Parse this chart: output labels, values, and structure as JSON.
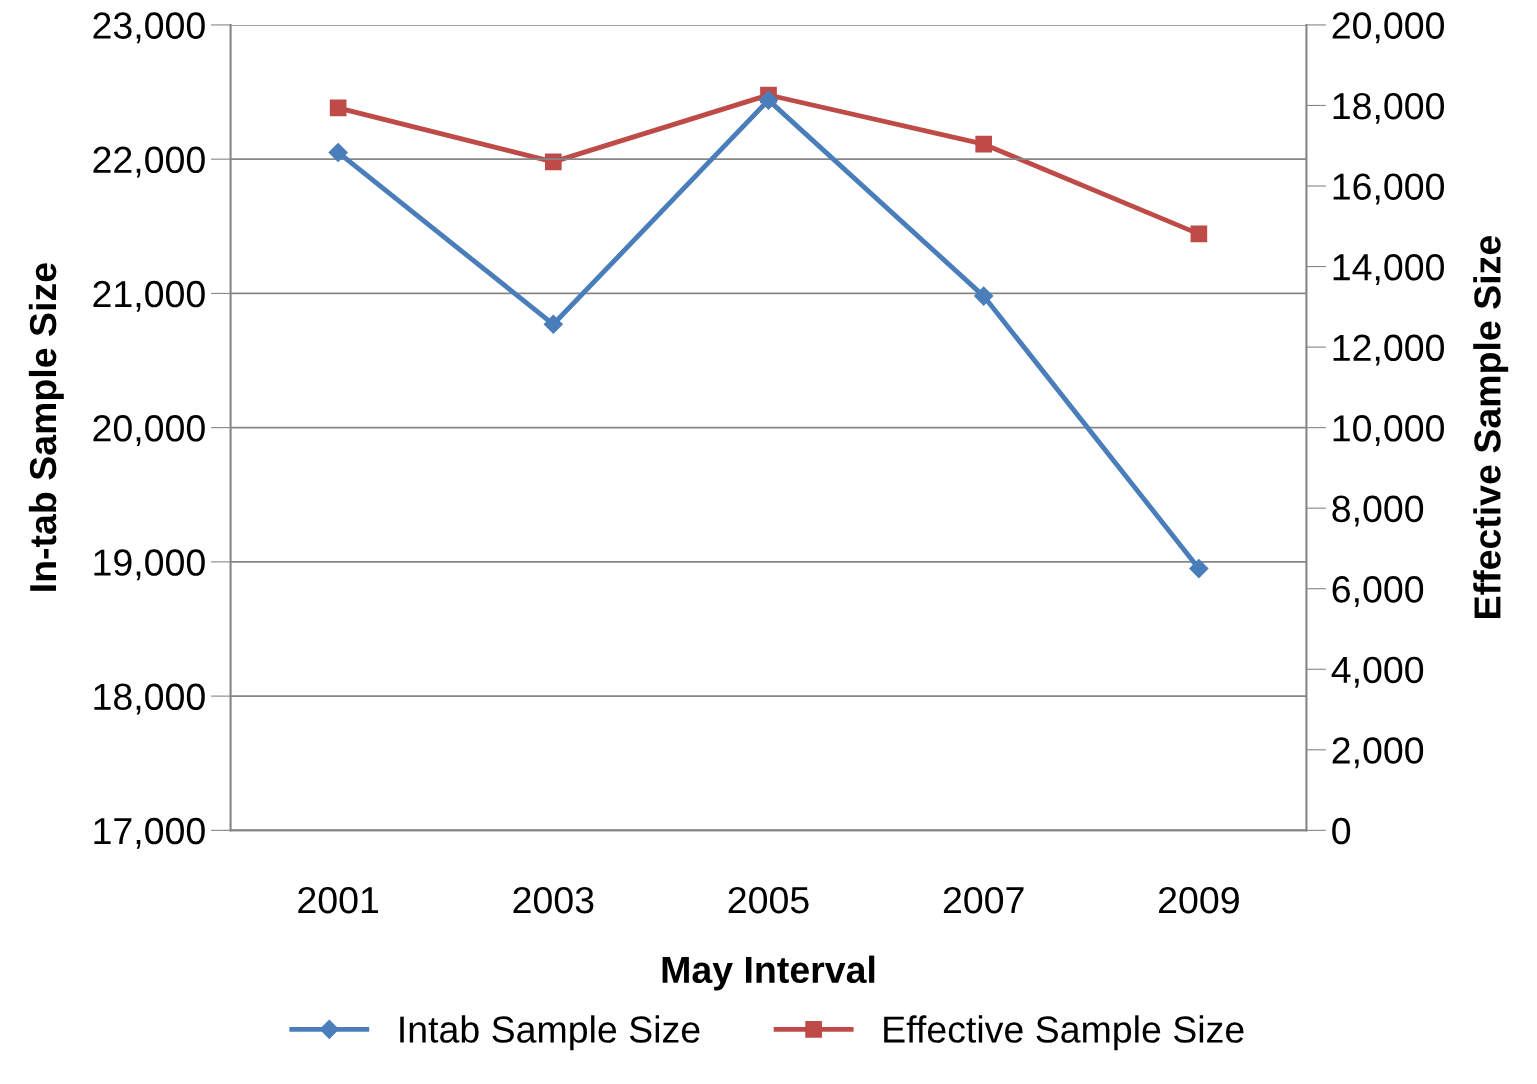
{
  "chart_data": {
    "type": "line",
    "xlabel": "May Interval",
    "ylabel": "In-tab Sample Size",
    "y2label": "Effective Sample Size",
    "categories": [
      "2001",
      "2003",
      "2005",
      "2007",
      "2009"
    ],
    "series": [
      {
        "name": "Intab Sample Size",
        "color": "#4a7ebb",
        "marker": "diamond",
        "values": [
          22050,
          20770,
          22440,
          20980,
          18950
        ]
      },
      {
        "name": "Effective Sample Size",
        "color": "#be4b48",
        "marker": "square",
        "axis": "y2",
        "values": [
          17940,
          16600,
          18260,
          17040,
          14810
        ]
      }
    ],
    "ylim": [
      17000,
      23000
    ],
    "yticks": [
      {
        "value": 17000,
        "label": "17,000"
      },
      {
        "value": 18000,
        "label": "18,000"
      },
      {
        "value": 19000,
        "label": "19,000"
      },
      {
        "value": 20000,
        "label": "20,000"
      },
      {
        "value": 21000,
        "label": "21,000"
      },
      {
        "value": 22000,
        "label": "22,000"
      },
      {
        "value": 23000,
        "label": "23,000"
      }
    ],
    "y2lim": [
      0,
      20000
    ],
    "y2ticks": [
      0,
      {
        "value": 2000,
        "label": "2,000"
      },
      {
        "value": 4000,
        "label": "4,000"
      },
      {
        "value": 6000,
        "label": "6,000"
      },
      {
        "value": 8000,
        "label": "8,000"
      },
      {
        "value": 10000,
        "label": "10,000"
      },
      {
        "value": 12000,
        "label": "12,000"
      },
      {
        "value": 14000,
        "label": "14,000"
      },
      {
        "value": 16000,
        "label": "16,000"
      },
      {
        "value": 18000,
        "label": "18,000"
      },
      {
        "value": 20000,
        "label": "20,000"
      }
    ],
    "grid": "y",
    "legend": "bottom",
    "line_style": "solid"
  }
}
